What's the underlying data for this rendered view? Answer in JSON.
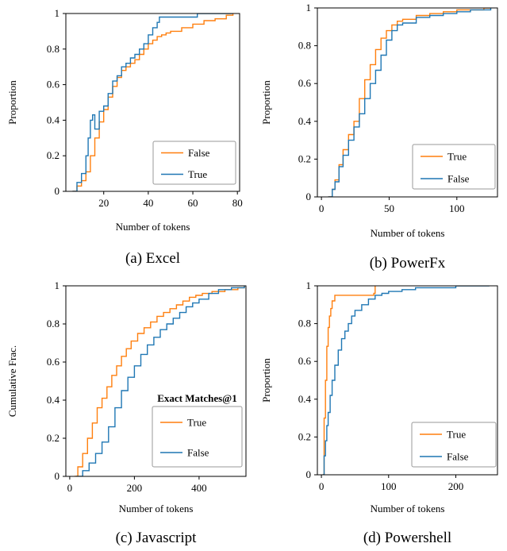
{
  "chart_data": [
    {
      "type": "line",
      "caption": "(a) Excel",
      "xlabel": "Number of tokens",
      "ylabel": "Proportion",
      "xlim": [
        3,
        81
      ],
      "ylim": [
        0,
        1
      ],
      "xticks": [
        20,
        40,
        60,
        80
      ],
      "yticks": [
        0,
        0.2,
        0.4,
        0.6,
        0.8,
        1
      ],
      "ytick_labels": [
        "0",
        "0.2",
        "0.4",
        "0.6",
        "0.8",
        "1"
      ],
      "legend": {
        "position": "bottom-right",
        "title": "",
        "entries": [
          "False",
          "True"
        ]
      },
      "series": [
        {
          "name": "False",
          "color": "#ff7f0e",
          "x": [
            6,
            8,
            10,
            12,
            14,
            16,
            18,
            20,
            22,
            24,
            26,
            28,
            30,
            32,
            34,
            36,
            38,
            40,
            42,
            44,
            46,
            48,
            50,
            55,
            60,
            65,
            70,
            75,
            78
          ],
          "y": [
            0,
            0.03,
            0.06,
            0.11,
            0.2,
            0.3,
            0.39,
            0.46,
            0.53,
            0.59,
            0.64,
            0.68,
            0.7,
            0.72,
            0.74,
            0.77,
            0.8,
            0.83,
            0.85,
            0.87,
            0.88,
            0.89,
            0.9,
            0.92,
            0.94,
            0.96,
            0.97,
            0.99,
            1
          ]
        },
        {
          "name": "True",
          "color": "#1f77b4",
          "x": [
            6,
            8,
            10,
            12,
            13,
            14,
            15,
            16,
            18,
            20,
            22,
            24,
            26,
            28,
            30,
            32,
            34,
            36,
            38,
            40,
            42,
            44,
            45,
            46,
            50,
            62,
            78
          ],
          "y": [
            0,
            0.05,
            0.1,
            0.2,
            0.3,
            0.4,
            0.43,
            0.35,
            0.45,
            0.48,
            0.55,
            0.62,
            0.65,
            0.7,
            0.72,
            0.75,
            0.77,
            0.8,
            0.83,
            0.88,
            0.92,
            0.95,
            0.98,
            0.98,
            0.98,
            1,
            1
          ]
        }
      ]
    },
    {
      "type": "line",
      "caption": "(b) PowerFx",
      "xlabel": "Number of tokens",
      "ylabel": "Proportion",
      "xlim": [
        -3,
        130
      ],
      "ylim": [
        0,
        1
      ],
      "xticks": [
        0,
        50,
        100
      ],
      "yticks": [
        0,
        0.2,
        0.4,
        0.6,
        0.8,
        1
      ],
      "ytick_labels": [
        "0",
        "0.2",
        "0.4",
        "0.6",
        "0.8",
        "1"
      ],
      "legend": {
        "position": "bottom-right",
        "title": "",
        "entries": [
          "True",
          "False"
        ]
      },
      "series": [
        {
          "name": "True",
          "color": "#ff7f0e",
          "x": [
            5,
            8,
            10,
            13,
            16,
            20,
            24,
            28,
            32,
            36,
            40,
            44,
            48,
            52,
            56,
            60,
            70,
            80,
            90,
            100,
            110,
            120,
            125
          ],
          "y": [
            0,
            0.04,
            0.09,
            0.17,
            0.25,
            0.33,
            0.4,
            0.52,
            0.62,
            0.7,
            0.78,
            0.84,
            0.88,
            0.91,
            0.93,
            0.94,
            0.96,
            0.97,
            0.98,
            0.99,
            0.99,
            1,
            1
          ]
        },
        {
          "name": "False",
          "color": "#1f77b4",
          "x": [
            5,
            8,
            10,
            13,
            16,
            20,
            24,
            28,
            32,
            36,
            40,
            44,
            48,
            52,
            56,
            60,
            70,
            80,
            90,
            100,
            110,
            125
          ],
          "y": [
            0,
            0.04,
            0.08,
            0.16,
            0.22,
            0.3,
            0.37,
            0.44,
            0.52,
            0.6,
            0.67,
            0.75,
            0.83,
            0.88,
            0.91,
            0.92,
            0.95,
            0.96,
            0.97,
            0.98,
            0.99,
            1
          ]
        }
      ]
    },
    {
      "type": "line",
      "caption": "(c) Javascript",
      "xlabel": "Number of tokens",
      "ylabel": "Cumulative Frac.",
      "xlim": [
        -12,
        545
      ],
      "ylim": [
        0,
        1
      ],
      "xticks": [
        0,
        200,
        400
      ],
      "yticks": [
        0,
        0.2,
        0.4,
        0.6,
        0.8,
        1
      ],
      "ytick_labels": [
        "0",
        "0.2",
        "0.4",
        "0.6",
        "0.8",
        "1"
      ],
      "legend": {
        "position": "bottom-right",
        "title": "Exact Matches@1",
        "entries": [
          "True",
          "False"
        ]
      },
      "series": [
        {
          "name": "True",
          "color": "#ff7f0e",
          "x": [
            15,
            25,
            40,
            55,
            70,
            85,
            100,
            115,
            130,
            145,
            160,
            175,
            190,
            210,
            230,
            250,
            270,
            290,
            310,
            330,
            350,
            370,
            390,
            410,
            440,
            480,
            520,
            540
          ],
          "y": [
            0,
            0.05,
            0.12,
            0.2,
            0.28,
            0.36,
            0.41,
            0.47,
            0.53,
            0.58,
            0.63,
            0.67,
            0.71,
            0.75,
            0.78,
            0.81,
            0.84,
            0.86,
            0.88,
            0.9,
            0.92,
            0.94,
            0.95,
            0.96,
            0.97,
            0.98,
            0.99,
            1
          ]
        },
        {
          "name": "False",
          "color": "#1f77b4",
          "x": [
            20,
            40,
            60,
            80,
            100,
            120,
            140,
            160,
            180,
            200,
            220,
            240,
            260,
            280,
            300,
            320,
            340,
            360,
            380,
            400,
            430,
            460,
            500,
            540
          ],
          "y": [
            0,
            0.03,
            0.07,
            0.12,
            0.18,
            0.26,
            0.36,
            0.45,
            0.52,
            0.58,
            0.64,
            0.69,
            0.73,
            0.77,
            0.8,
            0.83,
            0.86,
            0.89,
            0.91,
            0.93,
            0.96,
            0.98,
            0.99,
            1
          ]
        }
      ]
    },
    {
      "type": "line",
      "caption": "(d) Powershell",
      "xlabel": "Number of tokens",
      "ylabel": "Proportion",
      "xlim": [
        -6,
        262
      ],
      "ylim": [
        0,
        1
      ],
      "xticks": [
        0,
        100,
        200
      ],
      "yticks": [
        0,
        0.2,
        0.4,
        0.6,
        0.8,
        1
      ],
      "ytick_labels": [
        "0",
        "0.2",
        "0.4",
        "0.6",
        "0.8",
        "1"
      ],
      "legend": {
        "position": "bottom-right",
        "title": "",
        "entries": [
          "True",
          "False"
        ]
      },
      "series": [
        {
          "name": "True",
          "color": "#ff7f0e",
          "x": [
            2,
            4,
            6,
            8,
            10,
            12,
            14,
            16,
            20,
            25,
            30,
            40,
            50,
            60,
            70,
            78,
            80
          ],
          "y": [
            0,
            0.3,
            0.5,
            0.68,
            0.78,
            0.84,
            0.88,
            0.92,
            0.95,
            0.95,
            0.95,
            0.95,
            0.95,
            0.95,
            0.95,
            0.96,
            1
          ]
        },
        {
          "name": "False",
          "color": "#1f77b4",
          "x": [
            2,
            4,
            6,
            8,
            10,
            13,
            16,
            20,
            25,
            30,
            35,
            40,
            45,
            50,
            60,
            70,
            80,
            90,
            100,
            120,
            140,
            160,
            200,
            250
          ],
          "y": [
            0,
            0.1,
            0.18,
            0.26,
            0.33,
            0.42,
            0.5,
            0.58,
            0.66,
            0.72,
            0.76,
            0.8,
            0.84,
            0.87,
            0.9,
            0.93,
            0.95,
            0.96,
            0.97,
            0.98,
            0.99,
            0.99,
            1,
            1
          ]
        }
      ]
    }
  ]
}
